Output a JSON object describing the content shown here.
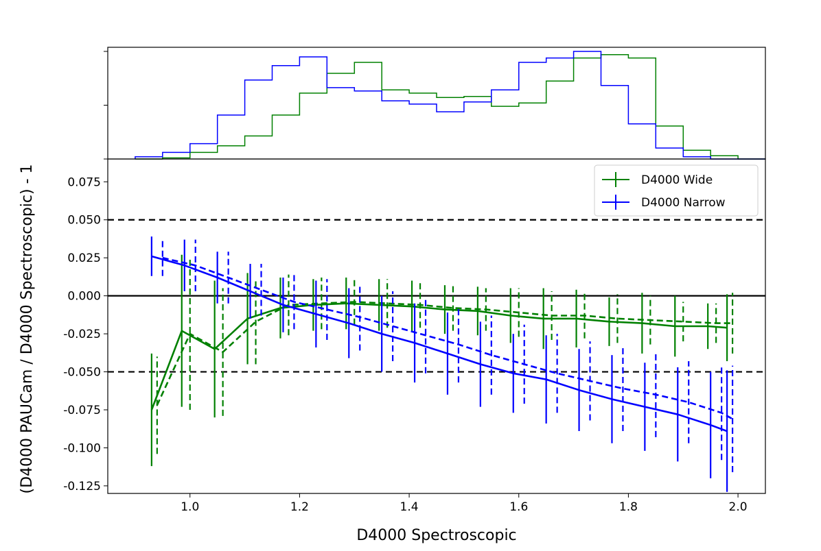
{
  "chart_data": {
    "type": "line",
    "xlabel": "D4000 Spectroscopic",
    "ylabel": "(D4000 PAUCam / D4000 Spectroscopic) - 1",
    "xlim": [
      0.85,
      2.05
    ],
    "ylim": [
      -0.13,
      0.09
    ],
    "xticks": [
      1.0,
      1.2,
      1.4,
      1.6,
      1.8,
      2.0
    ],
    "xtick_labels": [
      "1.0",
      "1.2",
      "1.4",
      "1.6",
      "1.8",
      "2.0"
    ],
    "yticks": [
      0.075,
      0.05,
      0.025,
      0.0,
      -0.025,
      -0.05,
      -0.075,
      -0.1,
      -0.125
    ],
    "ytick_labels": [
      "0.075",
      "0.050",
      "0.025",
      "0.000",
      "-0.025",
      "-0.050",
      "-0.075",
      "-0.100",
      "-0.125"
    ],
    "reference_lines": [
      {
        "y": 0.0,
        "style": "solid",
        "color": "#000000"
      },
      {
        "y": 0.05,
        "style": "dashed",
        "color": "#000000"
      },
      {
        "y": -0.05,
        "style": "dashed",
        "color": "#000000"
      }
    ],
    "legend": {
      "position": "upper-right",
      "entries": [
        {
          "label": "D4000 Wide",
          "color": "#008000"
        },
        {
          "label": "D4000 Narrow",
          "color": "#0000ff"
        }
      ]
    },
    "series": [
      {
        "name": "D4000 Wide",
        "style": "solid",
        "color": "#008000",
        "x": [
          0.93,
          0.985,
          1.045,
          1.105,
          1.165,
          1.225,
          1.285,
          1.345,
          1.405,
          1.465,
          1.525,
          1.585,
          1.645,
          1.705,
          1.765,
          1.825,
          1.885,
          1.945,
          1.98
        ],
        "y": [
          -0.075,
          -0.023,
          -0.035,
          -0.015,
          -0.008,
          -0.006,
          -0.005,
          -0.006,
          -0.007,
          -0.009,
          -0.01,
          -0.013,
          -0.015,
          -0.015,
          -0.017,
          -0.018,
          -0.02,
          -0.02,
          -0.021
        ],
        "err": [
          0.037,
          0.05,
          0.045,
          0.03,
          0.02,
          0.017,
          0.017,
          0.017,
          0.017,
          0.016,
          0.016,
          0.018,
          0.02,
          0.019,
          0.016,
          0.02,
          0.02,
          0.015,
          0.022
        ]
      },
      {
        "name": "D4000 Wide (dashed)",
        "style": "dashed",
        "color": "#008000",
        "x": [
          0.94,
          1.0,
          1.06,
          1.12,
          1.18,
          1.24,
          1.3,
          1.36,
          1.42,
          1.48,
          1.54,
          1.6,
          1.66,
          1.72,
          1.78,
          1.84,
          1.9,
          1.96,
          1.99
        ],
        "y": [
          -0.072,
          -0.025,
          -0.037,
          -0.017,
          -0.006,
          -0.005,
          -0.004,
          -0.005,
          -0.006,
          -0.008,
          -0.009,
          -0.011,
          -0.013,
          -0.013,
          -0.015,
          -0.016,
          -0.017,
          -0.018,
          -0.018
        ],
        "err": [
          0.032,
          0.05,
          0.042,
          0.028,
          0.02,
          0.017,
          0.015,
          0.016,
          0.015,
          0.015,
          0.014,
          0.016,
          0.016,
          0.015,
          0.016,
          0.016,
          0.013,
          0.013,
          0.02
        ]
      },
      {
        "name": "D4000 Narrow",
        "style": "solid",
        "color": "#0000ff",
        "x": [
          0.93,
          0.99,
          1.05,
          1.11,
          1.17,
          1.23,
          1.29,
          1.35,
          1.41,
          1.47,
          1.53,
          1.59,
          1.65,
          1.71,
          1.77,
          1.83,
          1.89,
          1.95,
          1.98
        ],
        "y": [
          0.026,
          0.02,
          0.012,
          0.003,
          -0.006,
          -0.012,
          -0.018,
          -0.025,
          -0.031,
          -0.038,
          -0.045,
          -0.051,
          -0.055,
          -0.062,
          -0.068,
          -0.073,
          -0.078,
          -0.085,
          -0.089
        ],
        "err": [
          0.013,
          0.017,
          0.017,
          0.018,
          0.018,
          0.022,
          0.023,
          0.025,
          0.026,
          0.027,
          0.028,
          0.026,
          0.029,
          0.027,
          0.029,
          0.029,
          0.031,
          0.035,
          0.04
        ]
      },
      {
        "name": "D4000 Narrow (dashed)",
        "style": "dashed",
        "color": "#0000ff",
        "x": [
          0.95,
          1.01,
          1.07,
          1.13,
          1.19,
          1.25,
          1.31,
          1.37,
          1.43,
          1.49,
          1.55,
          1.61,
          1.67,
          1.73,
          1.79,
          1.85,
          1.91,
          1.97,
          1.99
        ],
        "y": [
          0.025,
          0.02,
          0.012,
          0.004,
          -0.004,
          -0.009,
          -0.014,
          -0.02,
          -0.026,
          -0.032,
          -0.039,
          -0.045,
          -0.051,
          -0.056,
          -0.061,
          -0.065,
          -0.07,
          -0.077,
          -0.081
        ],
        "err": [
          0.012,
          0.017,
          0.017,
          0.017,
          0.018,
          0.02,
          0.022,
          0.023,
          0.025,
          0.025,
          0.026,
          0.026,
          0.026,
          0.026,
          0.028,
          0.028,
          0.027,
          0.031,
          0.035
        ]
      }
    ],
    "histogram": {
      "bin_edges": [
        0.9,
        0.95,
        1.0,
        1.05,
        1.1,
        1.15,
        1.2,
        1.25,
        1.3,
        1.35,
        1.4,
        1.45,
        1.5,
        1.55,
        1.6,
        1.65,
        1.7,
        1.75,
        1.8,
        1.85,
        1.9,
        1.95,
        2.0,
        2.05
      ],
      "wide_counts": [
        0,
        0.01,
        0.06,
        0.12,
        0.21,
        0.4,
        0.6,
        0.78,
        0.88,
        0.63,
        0.6,
        0.56,
        0.57,
        0.48,
        0.51,
        0.71,
        0.92,
        0.95,
        0.92,
        0.3,
        0.08,
        0.03,
        0.0
      ],
      "narrow_counts": [
        0.02,
        0.06,
        0.14,
        0.4,
        0.72,
        0.85,
        0.93,
        0.65,
        0.62,
        0.53,
        0.5,
        0.43,
        0.52,
        0.63,
        0.88,
        0.92,
        0.98,
        0.67,
        0.32,
        0.1,
        0.02,
        0.0,
        0.0
      ]
    }
  }
}
